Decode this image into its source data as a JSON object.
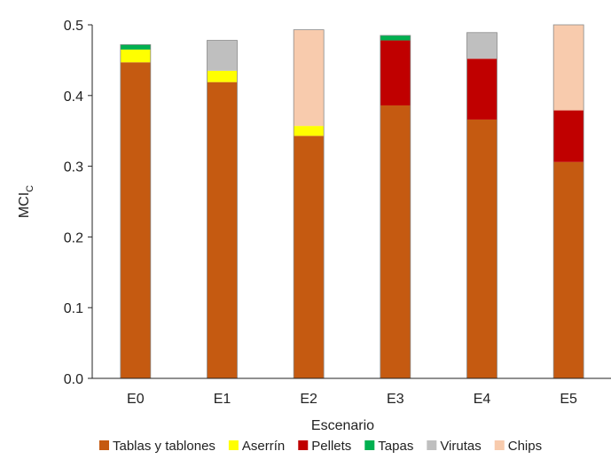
{
  "chart_data": {
    "type": "bar",
    "stacked": true,
    "title": "",
    "xlabel": "Escenario",
    "ylabel": {
      "main": "MCI",
      "subscript": "C"
    },
    "ylim": [
      0,
      0.5
    ],
    "yticks": [
      "0.0",
      "0.1",
      "0.2",
      "0.3",
      "0.4",
      "0.5"
    ],
    "grid": false,
    "legend_position": "bottom",
    "categories": [
      "E0",
      "E1",
      "E2",
      "E3",
      "E4",
      "E5"
    ],
    "series": [
      {
        "name": "Tablas y tablones",
        "color": "#C55A11",
        "values": [
          0.447,
          0.419,
          0.343,
          0.386,
          0.366,
          0.306
        ]
      },
      {
        "name": "Aserrín",
        "color": "#FFFF00",
        "values": [
          0.018,
          0.016,
          0.014,
          0.0,
          0.0,
          0.0
        ]
      },
      {
        "name": "Pellets",
        "color": "#C00000",
        "values": [
          0.0,
          0.0,
          0.0,
          0.092,
          0.086,
          0.073
        ]
      },
      {
        "name": "Tapas",
        "color": "#00B050",
        "values": [
          0.007,
          0.0,
          0.0,
          0.007,
          0.0,
          0.0
        ]
      },
      {
        "name": "Virutas",
        "color": "#BFBFBF",
        "values": [
          0.0,
          0.043,
          0.0,
          0.0,
          0.037,
          0.0
        ]
      },
      {
        "name": "Chips",
        "color": "#F8CBAD",
        "values": [
          0.0,
          0.0,
          0.136,
          0.0,
          0.0,
          0.121
        ]
      }
    ]
  }
}
